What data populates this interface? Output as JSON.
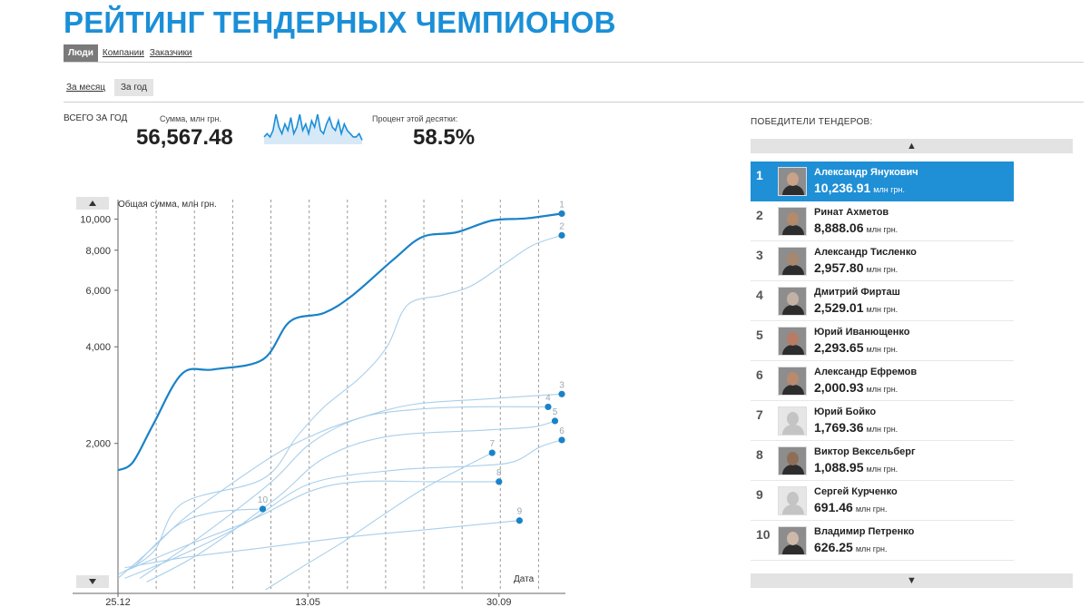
{
  "header": {
    "title": "РЕЙТИНГ ТЕНДЕРНЫХ ЧЕМПИОНОВ",
    "tabs": [
      {
        "label": "Люди",
        "active": true
      },
      {
        "label": "Компании",
        "active": false
      },
      {
        "label": "Заказчики",
        "active": false
      }
    ],
    "period": {
      "month_label": "За месяц",
      "year_label": "За год"
    }
  },
  "stats": {
    "total_label": "ВСЕГО ЗА ГОД",
    "sum_label": "Сумма, млн грн.",
    "sum_value": "56,567.48",
    "share_label": "Процент этой десятки:",
    "share_value": "58.5%"
  },
  "sparkline": {
    "values": [
      2,
      3,
      2,
      4,
      9,
      5,
      3,
      6,
      4,
      8,
      3,
      5,
      9,
      4,
      6,
      3,
      7,
      5,
      9,
      4,
      3,
      6,
      8,
      5,
      4,
      7,
      3,
      6,
      4,
      3,
      2,
      2,
      3,
      1
    ],
    "color": "#1b8fd7"
  },
  "chart_data": {
    "type": "line",
    "ylabel": "Общая сумма, млн грн.",
    "xlabel": "Дата",
    "y_ticks": [
      "10,000",
      "8,000",
      "6,000",
      "4,000",
      "2,000"
    ],
    "y_tick_values": [
      10000,
      8000,
      6000,
      4000,
      2000
    ],
    "x_ticks": [
      "25.12",
      "13.05",
      "30.09"
    ],
    "x_tick_dates": [
      "2010-12-25",
      "2011-05-13",
      "2011-09-30"
    ],
    "x_range": [
      "2010-12-25",
      "2011-11-15"
    ],
    "y_scale": "log",
    "ylim": [
      700,
      11500
    ],
    "grid": "vertical-dashed",
    "highlight_color": "#1a82c8",
    "muted_color": "#a9cfeb",
    "point_color": "#1a82c8",
    "series": [
      {
        "name": "1",
        "x": [
          "2010-12-25",
          "2011-01-05",
          "2011-01-20",
          "2011-02-10",
          "2011-03-05",
          "2011-04-10",
          "2011-04-30",
          "2011-05-25",
          "2011-06-15",
          "2011-07-15",
          "2011-08-05",
          "2011-08-30",
          "2011-09-25",
          "2011-10-20",
          "2011-11-15"
        ],
        "y": [
          1650,
          1750,
          2300,
          3300,
          3400,
          3650,
          4800,
          5100,
          5800,
          7500,
          8800,
          9100,
          9900,
          10050,
          10400
        ]
      },
      {
        "name": "2",
        "x": [
          "2010-12-25",
          "2011-01-20",
          "2011-02-10",
          "2011-04-10",
          "2011-05-05",
          "2011-05-25",
          "2011-06-20",
          "2011-07-10",
          "2011-07-25",
          "2011-08-20",
          "2011-09-10",
          "2011-10-05",
          "2011-10-25",
          "2011-11-15"
        ],
        "y": [
          780,
          920,
          1300,
          1550,
          2100,
          2600,
          3200,
          4000,
          5400,
          5800,
          6200,
          7300,
          8300,
          8900
        ]
      },
      {
        "name": "3",
        "x": [
          "2010-12-25",
          "2011-01-20",
          "2011-02-15",
          "2011-04-15",
          "2011-05-20",
          "2011-06-20",
          "2011-07-30",
          "2011-09-20",
          "2011-11-15"
        ],
        "y": [
          760,
          950,
          1200,
          1800,
          2150,
          2400,
          2650,
          2750,
          2850
        ]
      },
      {
        "name": "4",
        "x": [
          "2011-01-10",
          "2011-02-20",
          "2011-04-15",
          "2011-05-15",
          "2011-06-20",
          "2011-07-30",
          "2011-09-10",
          "2011-11-05"
        ],
        "y": [
          760,
          1000,
          1500,
          2000,
          2400,
          2550,
          2600,
          2600
        ]
      },
      {
        "name": "5",
        "x": [
          "2011-01-15",
          "2011-02-25",
          "2011-04-20",
          "2011-05-25",
          "2011-07-10",
          "2011-09-20",
          "2011-10-25",
          "2011-11-10"
        ],
        "y": [
          740,
          920,
          1350,
          1800,
          2100,
          2200,
          2250,
          2350
        ]
      },
      {
        "name": "6",
        "x": [
          "2010-12-30",
          "2011-02-10",
          "2011-04-01",
          "2011-05-15",
          "2011-07-15",
          "2011-09-10",
          "2011-10-10",
          "2011-10-30",
          "2011-11-15"
        ],
        "y": [
          760,
          900,
          1150,
          1500,
          1650,
          1700,
          1750,
          1950,
          2050
        ]
      },
      {
        "name": "7",
        "x": [
          "2011-04-12",
          "2011-05-10",
          "2011-06-10",
          "2011-07-10",
          "2011-08-10",
          "2011-09-25"
        ],
        "y": [
          700,
          830,
          1000,
          1220,
          1480,
          1870
        ]
      },
      {
        "name": "8",
        "x": [
          "2010-12-30",
          "2011-02-10",
          "2011-04-01",
          "2011-05-15",
          "2011-06-20",
          "2011-08-10",
          "2011-09-30"
        ],
        "y": [
          800,
          950,
          1150,
          1420,
          1520,
          1520,
          1520
        ]
      },
      {
        "name": "9",
        "x": [
          "2010-12-30",
          "2011-02-10",
          "2011-04-05",
          "2011-06-10",
          "2011-08-10",
          "2011-10-15"
        ],
        "y": [
          820,
          880,
          940,
          1020,
          1080,
          1150
        ]
      },
      {
        "name": "10",
        "x": [
          "2011-01-05",
          "2011-02-05",
          "2011-03-05",
          "2011-04-10"
        ],
        "y": [
          820,
          1100,
          1220,
          1250
        ]
      }
    ]
  },
  "winners": {
    "title": "ПОБЕДИТЕЛИ ТЕНДЕРОВ:",
    "unit": "млн грн.",
    "items": [
      {
        "rank": "1",
        "name": "Александр Янукович",
        "amount": "10,236.91",
        "active": true,
        "avatar": "photo",
        "tone": "#c9a289"
      },
      {
        "rank": "2",
        "name": "Ринат Ахметов",
        "amount": "8,888.06",
        "active": false,
        "avatar": "photo",
        "tone": "#b38a6c"
      },
      {
        "rank": "3",
        "name": "Александр Тисленко",
        "amount": "2,957.80",
        "active": false,
        "avatar": "photo",
        "tone": "#a7876d"
      },
      {
        "rank": "4",
        "name": "Дмитрий Фирташ",
        "amount": "2,529.01",
        "active": false,
        "avatar": "photo",
        "tone": "#c2b2a6"
      },
      {
        "rank": "5",
        "name": "Юрий Иванющенко",
        "amount": "2,293.65",
        "active": false,
        "avatar": "photo",
        "tone": "#b77c63"
      },
      {
        "rank": "6",
        "name": "Александр Ефремов",
        "amount": "2,000.93",
        "active": false,
        "avatar": "photo",
        "tone": "#b98a6e"
      },
      {
        "rank": "7",
        "name": "Юрий Бойко",
        "amount": "1,769.36",
        "active": false,
        "avatar": "placeholder",
        "tone": "#d2d2d2"
      },
      {
        "rank": "8",
        "name": "Виктор Вексельберг",
        "amount": "1,088.95",
        "active": false,
        "avatar": "photo",
        "tone": "#8f6e57"
      },
      {
        "rank": "9",
        "name": "Сергей Курченко",
        "amount": "691.46",
        "active": false,
        "avatar": "placeholder",
        "tone": "#d2d2d2"
      },
      {
        "rank": "10",
        "name": "Владимир Петренко",
        "amount": "626.25",
        "active": false,
        "avatar": "photo",
        "tone": "#cdb8a9"
      }
    ]
  }
}
